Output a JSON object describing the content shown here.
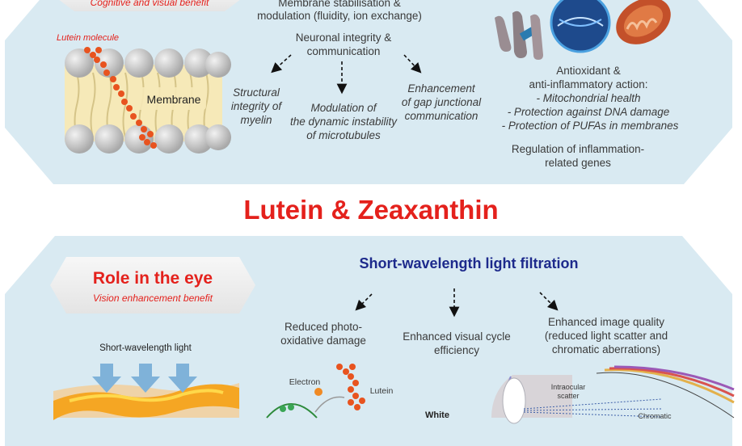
{
  "top": {
    "tag_subtitle": "Cognitive and visual benefit",
    "lutein_molecule": "Lutein molecule",
    "membrane": "Membrane",
    "membrane_stabilisation": "Membrane stabilisation &",
    "modulation": "modulation (fluidity, ion exchange)",
    "neuronal": "Neuronal integrity &",
    "communication": "communication",
    "myelin_1": "Structural",
    "myelin_2": "integrity of",
    "myelin_3": "myelin",
    "micro_1": "Modulation of",
    "micro_2": "the dynamic instability",
    "micro_3": "of microtubules",
    "gap_1": "Enhancement",
    "gap_2": "of gap junctional",
    "gap_3": "communication",
    "antiox_1": "Antioxidant &",
    "antiox_2": "anti-inflammatory action:",
    "antiox_3": "- Mitochondrial health",
    "antiox_4": "- Protection against DNA damage",
    "antiox_5": "- Protection of PUFAs in membranes",
    "regulation_1": "Regulation of inflammation-",
    "regulation_2": "related genes"
  },
  "main_title": "Lutein & Zeaxanthin",
  "bottom": {
    "role_title": "Role in the eye",
    "role_subtitle": "Vision enhancement benefit",
    "filtration": "Short-wavelength light filtration",
    "light_label": "Short-wavelength light",
    "photo_1": "Reduced photo-",
    "photo_2": "oxidative damage",
    "visual_1": "Enhanced visual cycle",
    "visual_2": "efficiency",
    "image_1": "Enhanced image quality",
    "image_2": "(reduced light scatter and",
    "image_3": "chromatic aberrations)",
    "electron": "Electron",
    "lutein": "Lutein",
    "intraocular_1": "Intraocular",
    "intraocular_2": "scatter",
    "white": "White",
    "chromatic": "Chromatic"
  },
  "colors": {
    "accent_red": "#e4211c",
    "title_blue": "#1d2a8c",
    "panel_bg": "#d9eaf2",
    "molecule_orange": "#e8531f"
  }
}
